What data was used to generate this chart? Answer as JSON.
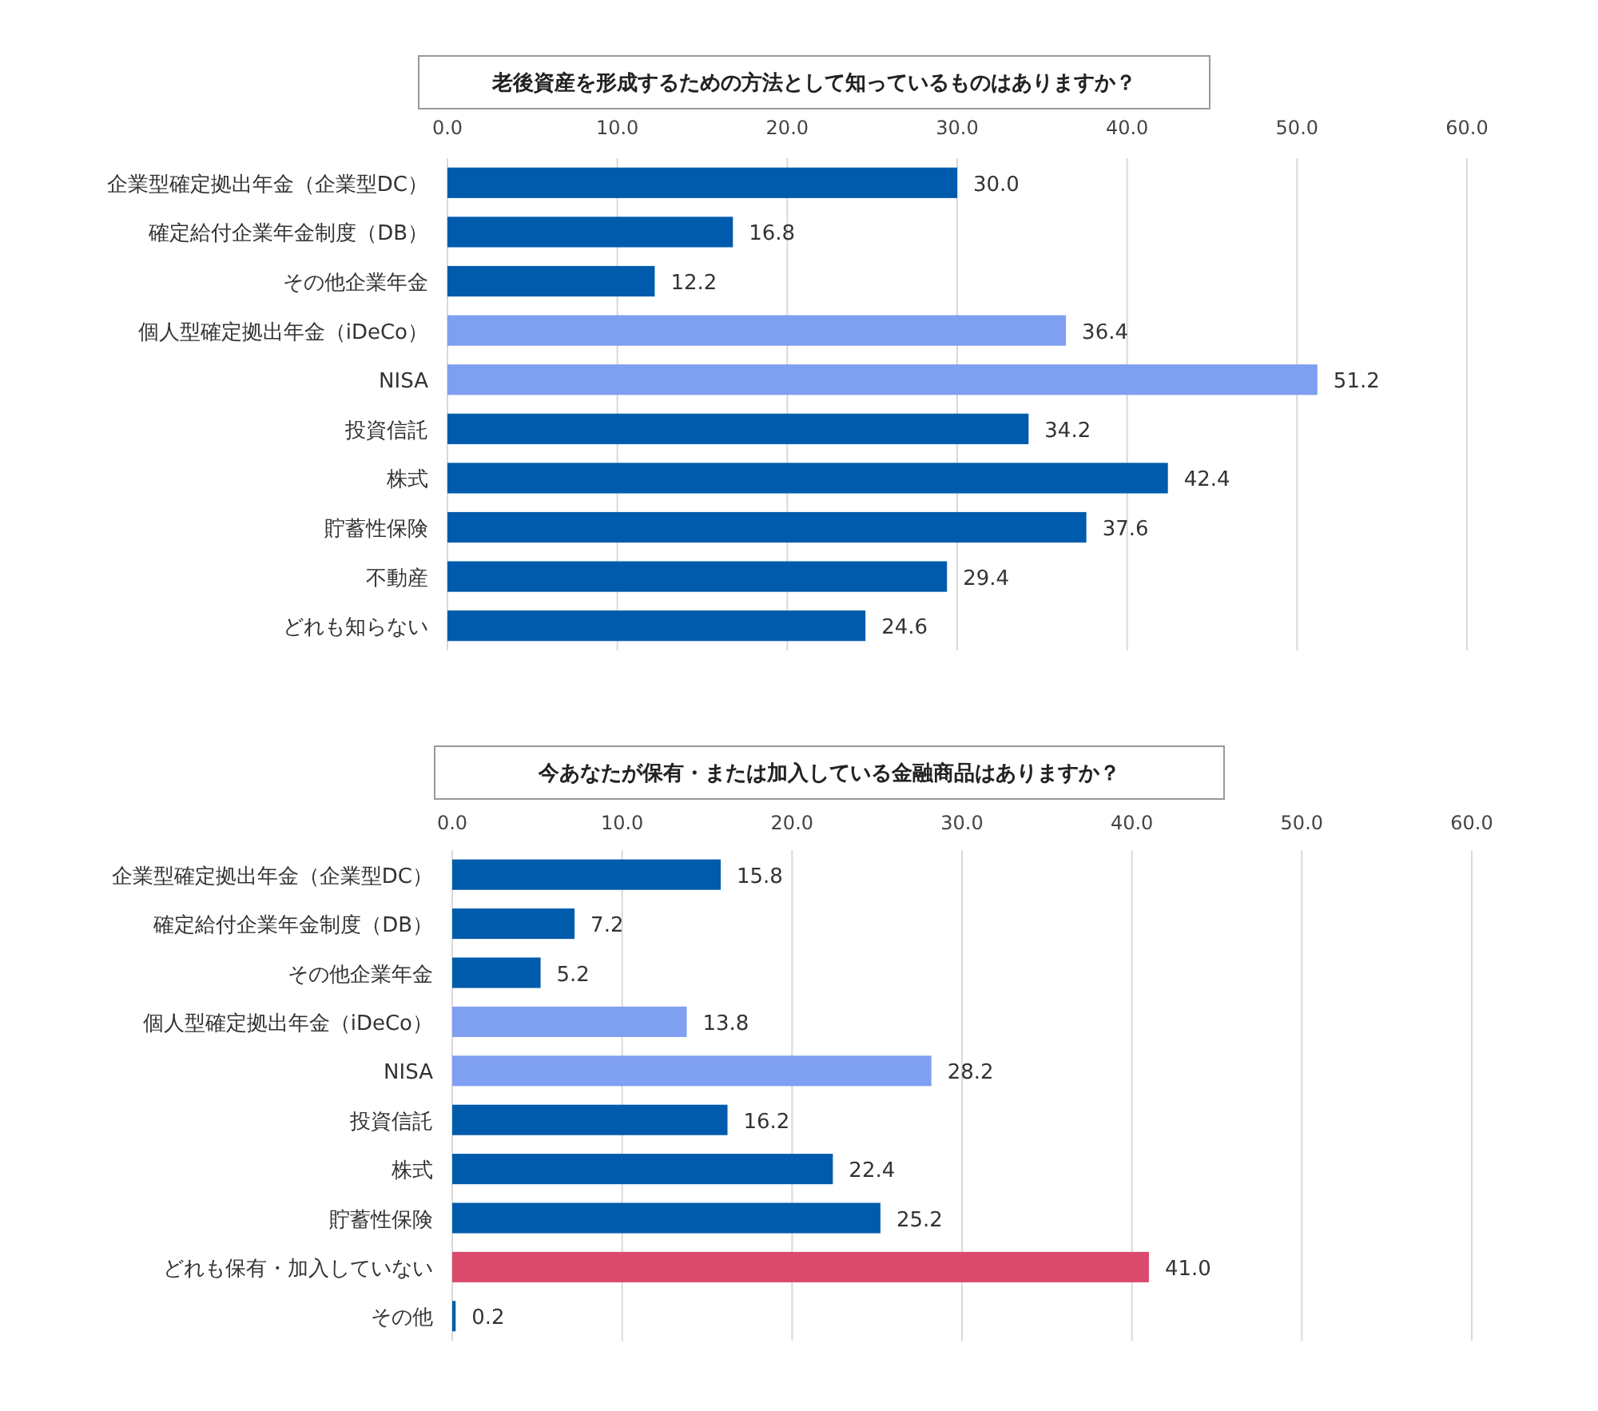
{
  "chart_data": [
    {
      "type": "bar",
      "orientation": "horizontal",
      "title": "老後資産を形成するための方法として知っているものはありますか？",
      "categories": [
        "企業型確定拠出年金（企業型DC）",
        "確定給付企業年金制度（DB）",
        "その他企業年金",
        "個人型確定拠出年金（iDeCo）",
        "NISA",
        "投資信託",
        "株式",
        "貯蓄性保険",
        "不動産",
        "どれも知らない"
      ],
      "values": [
        30.0,
        16.8,
        12.2,
        36.4,
        51.2,
        34.2,
        42.4,
        37.6,
        29.4,
        24.6
      ],
      "value_labels": [
        "30.0",
        "16.8",
        "12.2",
        "36.4",
        "51.2",
        "34.2",
        "42.4",
        "37.6",
        "29.4",
        "24.6"
      ],
      "colors": [
        "#005bac",
        "#005bac",
        "#005bac",
        "#7f9ff0",
        "#7f9ff0",
        "#005bac",
        "#005bac",
        "#005bac",
        "#005bac",
        "#005bac"
      ],
      "xlim": [
        0,
        60
      ],
      "xticks": [
        {
          "value": 0,
          "label": "0.0"
        },
        {
          "value": 10,
          "label": "10.0"
        },
        {
          "value": 20,
          "label": "20.0"
        },
        {
          "value": 30,
          "label": "30.0"
        },
        {
          "value": 40,
          "label": "40.0"
        },
        {
          "value": 50,
          "label": "50.0"
        },
        {
          "value": 60,
          "label": "60.0"
        }
      ],
      "grid": "x"
    },
    {
      "type": "bar",
      "orientation": "horizontal",
      "title": "今あなたが保有・または加入している金融商品はありますか？",
      "categories": [
        "企業型確定拠出年金（企業型DC）",
        "確定給付企業年金制度（DB）",
        "その他企業年金",
        "個人型確定拠出年金（iDeCo）",
        "NISA",
        "投資信託",
        "株式",
        "貯蓄性保険",
        "どれも保有・加入していない",
        "その他"
      ],
      "values": [
        15.8,
        7.2,
        5.2,
        13.8,
        28.2,
        16.2,
        22.4,
        25.2,
        41.0,
        0.2
      ],
      "value_labels": [
        "15.8",
        "7.2",
        "5.2",
        "13.8",
        "28.2",
        "16.2",
        "22.4",
        "25.2",
        "41.0",
        "0.2"
      ],
      "colors": [
        "#005bac",
        "#005bac",
        "#005bac",
        "#7f9ff0",
        "#7f9ff0",
        "#005bac",
        "#005bac",
        "#005bac",
        "#d94a6c",
        "#005bac"
      ],
      "xlim": [
        0,
        60
      ],
      "xticks": [
        {
          "value": 0,
          "label": "0.0"
        },
        {
          "value": 10,
          "label": "10.0"
        },
        {
          "value": 20,
          "label": "20.0"
        },
        {
          "value": 30,
          "label": "30.0"
        },
        {
          "value": 40,
          "label": "40.0"
        },
        {
          "value": 50,
          "label": "50.0"
        },
        {
          "value": 60,
          "label": "60.0"
        }
      ],
      "grid": "x"
    }
  ]
}
